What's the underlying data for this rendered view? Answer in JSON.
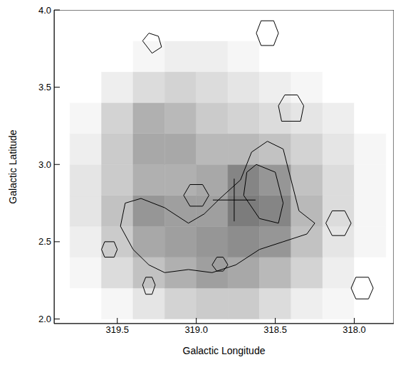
{
  "chart_data": {
    "type": "heatmap",
    "x_label": "Galactic Longitude",
    "y_label": "Galactic Latitude",
    "xlim": [
      319.9,
      317.75
    ],
    "ylim": [
      1.97,
      4.0
    ],
    "xticks": [
      319.5,
      {
        "value": 319,
        "label": "319.0"
      },
      318.5,
      {
        "value": 318,
        "label": "318.0"
      }
    ],
    "yticks": [
      {
        "value": 2,
        "label": "2.0"
      },
      2.5,
      {
        "value": 3,
        "label": "3.0"
      },
      3.5,
      {
        "value": 4,
        "label": "4.0"
      }
    ],
    "cells": {
      "x": [
        319.7,
        319.5,
        319.3,
        319.1,
        318.9,
        318.7,
        318.5,
        318.3,
        318.1,
        317.9
      ],
      "y": [
        2.1,
        2.3,
        2.5,
        2.7,
        2.9,
        3.1,
        3.3,
        3.5,
        3.7,
        3.9
      ],
      "z": [
        [
          0,
          0.05,
          0.15,
          0.25,
          0.3,
          0.3,
          0.2,
          0.1,
          0.05,
          0
        ],
        [
          0.05,
          0.2,
          0.35,
          0.45,
          0.55,
          0.5,
          0.4,
          0.25,
          0.1,
          0
        ],
        [
          0.1,
          0.3,
          0.5,
          0.55,
          0.6,
          0.65,
          0.6,
          0.35,
          0.15,
          0.05
        ],
        [
          0.15,
          0.35,
          0.6,
          0.55,
          0.55,
          0.75,
          0.7,
          0.4,
          0.2,
          0.05
        ],
        [
          0.15,
          0.3,
          0.45,
          0.45,
          0.5,
          0.7,
          0.6,
          0.35,
          0.2,
          0.05
        ],
        [
          0.1,
          0.3,
          0.5,
          0.5,
          0.4,
          0.4,
          0.35,
          0.25,
          0.15,
          0.05
        ],
        [
          0.05,
          0.25,
          0.45,
          0.4,
          0.3,
          0.25,
          0.2,
          0.15,
          0.1,
          0
        ],
        [
          0,
          0.1,
          0.2,
          0.25,
          0.2,
          0.15,
          0.1,
          0.05,
          0,
          0
        ],
        [
          0,
          0,
          0.05,
          0.1,
          0.1,
          0.05,
          0,
          0,
          0,
          0
        ],
        [
          0,
          0,
          0,
          0,
          0,
          0,
          0,
          0,
          0,
          0
        ]
      ],
      "zlim": [
        0,
        1
      ]
    },
    "contours": [
      [
        [
          319.45,
          2.75
        ],
        [
          319.35,
          2.78
        ],
        [
          319.2,
          2.72
        ],
        [
          319.05,
          2.62
        ],
        [
          318.95,
          2.68
        ],
        [
          318.85,
          2.78
        ],
        [
          318.72,
          2.9
        ],
        [
          318.65,
          3.08
        ],
        [
          318.55,
          3.15
        ],
        [
          318.45,
          3.1
        ],
        [
          318.4,
          2.9
        ],
        [
          318.35,
          2.7
        ],
        [
          318.25,
          2.62
        ],
        [
          318.3,
          2.55
        ],
        [
          318.45,
          2.5
        ],
        [
          318.6,
          2.45
        ],
        [
          318.75,
          2.35
        ],
        [
          318.9,
          2.3
        ],
        [
          319.05,
          2.32
        ],
        [
          319.2,
          2.3
        ],
        [
          319.3,
          2.35
        ],
        [
          319.4,
          2.45
        ],
        [
          319.48,
          2.6
        ],
        [
          319.45,
          2.75
        ]
      ],
      [
        [
          318.62,
          3.0
        ],
        [
          318.5,
          2.95
        ],
        [
          318.45,
          2.75
        ],
        [
          318.48,
          2.62
        ],
        [
          318.6,
          2.65
        ],
        [
          318.7,
          2.8
        ],
        [
          318.68,
          2.95
        ],
        [
          318.62,
          3.0
        ]
      ],
      [
        [
          319.08,
          2.8
        ],
        [
          319.04,
          2.87
        ],
        [
          318.96,
          2.87
        ],
        [
          318.92,
          2.8
        ],
        [
          318.96,
          2.73
        ],
        [
          319.04,
          2.73
        ],
        [
          319.08,
          2.8
        ]
      ],
      [
        [
          319.6,
          2.45
        ],
        [
          319.58,
          2.5
        ],
        [
          319.52,
          2.5
        ],
        [
          319.5,
          2.45
        ],
        [
          319.52,
          2.4
        ],
        [
          319.58,
          2.4
        ],
        [
          319.6,
          2.45
        ]
      ],
      [
        [
          318.18,
          2.62
        ],
        [
          318.14,
          2.7
        ],
        [
          318.06,
          2.7
        ],
        [
          318.02,
          2.62
        ],
        [
          318.06,
          2.54
        ],
        [
          318.14,
          2.54
        ],
        [
          318.18,
          2.62
        ]
      ],
      [
        [
          318.02,
          2.2
        ],
        [
          317.99,
          2.27
        ],
        [
          317.91,
          2.27
        ],
        [
          317.88,
          2.2
        ],
        [
          317.91,
          2.13
        ],
        [
          317.99,
          2.13
        ],
        [
          318.02,
          2.2
        ]
      ],
      [
        [
          318.62,
          3.85
        ],
        [
          318.59,
          3.93
        ],
        [
          318.51,
          3.93
        ],
        [
          318.48,
          3.85
        ],
        [
          318.51,
          3.77
        ],
        [
          318.59,
          3.77
        ],
        [
          318.62,
          3.85
        ]
      ],
      [
        [
          318.48,
          3.38
        ],
        [
          318.44,
          3.45
        ],
        [
          318.36,
          3.45
        ],
        [
          318.32,
          3.38
        ],
        [
          318.34,
          3.28
        ],
        [
          318.46,
          3.28
        ],
        [
          318.48,
          3.38
        ]
      ],
      [
        [
          319.34,
          2.22
        ],
        [
          319.32,
          2.27
        ],
        [
          319.28,
          2.27
        ],
        [
          319.26,
          2.22
        ],
        [
          319.28,
          2.16
        ],
        [
          319.32,
          2.16
        ],
        [
          319.34,
          2.22
        ]
      ],
      [
        [
          318.9,
          2.35
        ],
        [
          318.87,
          2.4
        ],
        [
          318.83,
          2.4
        ],
        [
          318.8,
          2.35
        ],
        [
          318.83,
          2.31
        ],
        [
          318.87,
          2.31
        ],
        [
          318.9,
          2.35
        ]
      ],
      [
        [
          319.34,
          3.8
        ],
        [
          319.3,
          3.85
        ],
        [
          319.24,
          3.83
        ],
        [
          319.22,
          3.76
        ],
        [
          319.28,
          3.72
        ],
        [
          319.34,
          3.8
        ]
      ]
    ],
    "color": "#000000",
    "points": [
      {
        "x": 318.76,
        "y": 2.77
      }
    ],
    "marker": "cross"
  }
}
